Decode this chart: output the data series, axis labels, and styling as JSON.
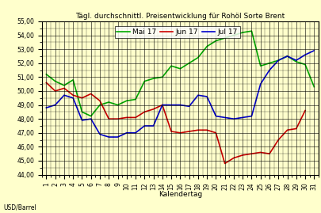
{
  "title": "Tägl. durchschnittl. Preisentwicklung für Rohöl Sorte Brent",
  "xlabel": "Kalendertag",
  "ylabel": "USD/Barrel",
  "ylim": [
    44.0,
    55.0
  ],
  "yticks": [
    44.0,
    45.0,
    46.0,
    47.0,
    48.0,
    49.0,
    50.0,
    51.0,
    52.0,
    53.0,
    54.0,
    55.0
  ],
  "xticks": [
    1,
    2,
    3,
    4,
    5,
    6,
    7,
    8,
    9,
    10,
    11,
    12,
    13,
    14,
    15,
    16,
    17,
    18,
    19,
    20,
    21,
    22,
    23,
    24,
    25,
    26,
    27,
    28,
    29,
    30,
    31
  ],
  "background_color": "#ffffcc",
  "grid_color": "#000000",
  "mai17": [
    51.2,
    50.7,
    50.4,
    50.8,
    48.5,
    48.2,
    49.0,
    49.2,
    49.0,
    49.3,
    49.4,
    50.7,
    50.9,
    51.0,
    51.8,
    51.6,
    52.0,
    52.4,
    53.2,
    53.6,
    53.8,
    54.0,
    54.2,
    54.3,
    51.8,
    52.0,
    52.2,
    52.5,
    52.1,
    51.9,
    50.3
  ],
  "jun17": [
    50.6,
    50.0,
    50.2,
    49.7,
    49.5,
    49.8,
    49.3,
    48.0,
    48.0,
    48.1,
    48.1,
    48.5,
    48.7,
    49.0,
    47.1,
    47.0,
    47.1,
    47.2,
    47.2,
    47.0,
    44.8,
    45.2,
    45.4,
    45.5,
    45.6,
    45.5,
    46.5,
    47.2,
    47.3,
    48.6,
    null
  ],
  "jul17": [
    48.8,
    49.0,
    49.7,
    49.5,
    47.9,
    48.0,
    46.9,
    46.7,
    46.7,
    47.0,
    47.0,
    47.5,
    47.5,
    49.0,
    49.0,
    49.0,
    48.9,
    49.7,
    49.6,
    48.2,
    48.1,
    48.0,
    48.1,
    48.2,
    50.5,
    51.5,
    52.2,
    52.5,
    52.2,
    52.6,
    52.9
  ],
  "mai17_color": "#00aa00",
  "jun17_color": "#cc0000",
  "jul17_color": "#0000cc",
  "line_width": 1.2,
  "title_fontsize": 6.5,
  "legend_fontsize": 6.5,
  "tick_fontsize": 5.5,
  "xlabel_fontsize": 6.5
}
